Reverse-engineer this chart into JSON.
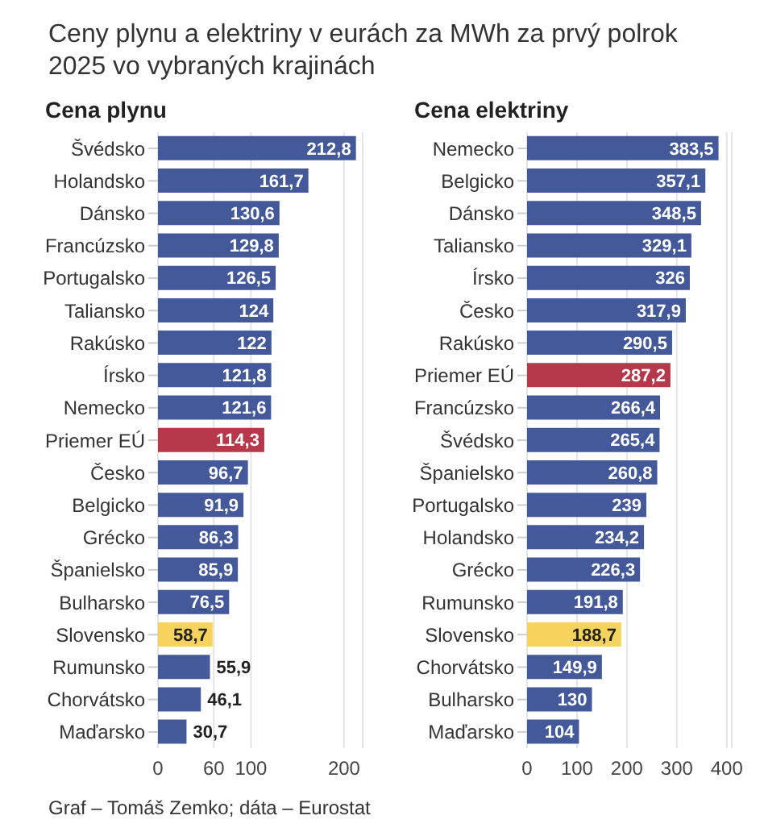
{
  "chart_data": [
    {
      "type": "bar",
      "orientation": "horizontal",
      "title": "Cena plynu",
      "annotations": [
        "Ceny plynu a elektriny v eurách za MWh za prvý polrok 2025 vo vybraných krajinách",
        "Graf – Tomáš Zemko; dáta – Eurostat"
      ],
      "categories": [
        "Švédsko",
        "Holandsko",
        "Dánsko",
        "Francúzsko",
        "Portugalsko",
        "Taliansko",
        "Rakúsko",
        "Írsko",
        "Nemecko",
        "Priemer EÚ",
        "Česko",
        "Belgicko",
        "Grécko",
        "Španielsko",
        "Bulharsko",
        "Slovensko",
        "Rumunsko",
        "Chorvátsko",
        "Maďarsko"
      ],
      "values": [
        212.8,
        161.7,
        130.6,
        129.8,
        126.5,
        124,
        122,
        121.8,
        121.6,
        114.3,
        96.7,
        91.9,
        86.3,
        85.9,
        76.5,
        58.7,
        55.9,
        46.1,
        30.7
      ],
      "value_labels": [
        "212,8",
        "161,7",
        "130,6",
        "129,8",
        "126,5",
        "124",
        "122",
        "121,8",
        "121,6",
        "114,3",
        "96,7",
        "91,9",
        "86,3",
        "85,9",
        "76,5",
        "58,7",
        "55,9",
        "46,1",
        "30,7"
      ],
      "colors": [
        "#44599a",
        "#44599a",
        "#44599a",
        "#44599a",
        "#44599a",
        "#44599a",
        "#44599a",
        "#44599a",
        "#44599a",
        "#b5394a",
        "#44599a",
        "#44599a",
        "#44599a",
        "#44599a",
        "#44599a",
        "#f5d35c",
        "#44599a",
        "#44599a",
        "#44599a"
      ],
      "xlim": [
        0,
        220
      ],
      "xticks": [
        0,
        60,
        100,
        200
      ],
      "grid": "x"
    },
    {
      "type": "bar",
      "orientation": "horizontal",
      "title": "Cena elektriny",
      "categories": [
        "Nemecko",
        "Belgicko",
        "Dánsko",
        "Taliansko",
        "Írsko",
        "Česko",
        "Rakúsko",
        "Priemer EÚ",
        "Francúzsko",
        "Švédsko",
        "Španielsko",
        "Portugalsko",
        "Holandsko",
        "Grécko",
        "Rumunsko",
        "Slovensko",
        "Chorvátsko",
        "Bulharsko",
        "Maďarsko"
      ],
      "values": [
        383.5,
        357.1,
        348.5,
        329.1,
        326,
        317.9,
        290.5,
        287.2,
        266.4,
        265.4,
        260.8,
        239,
        234.2,
        226.3,
        191.8,
        188.7,
        149.9,
        130,
        104
      ],
      "value_labels": [
        "383,5",
        "357,1",
        "348,5",
        "329,1",
        "326",
        "317,9",
        "290,5",
        "287,2",
        "266,4",
        "265,4",
        "260,8",
        "239",
        "234,2",
        "226,3",
        "191,8",
        "188,7",
        "149,9",
        "130",
        "104"
      ],
      "colors": [
        "#44599a",
        "#44599a",
        "#44599a",
        "#44599a",
        "#44599a",
        "#44599a",
        "#44599a",
        "#b5394a",
        "#44599a",
        "#44599a",
        "#44599a",
        "#44599a",
        "#44599a",
        "#44599a",
        "#44599a",
        "#f5d35c",
        "#44599a",
        "#44599a",
        "#44599a"
      ],
      "xlim": [
        0,
        410
      ],
      "xticks": [
        0,
        100,
        200,
        300,
        400
      ],
      "grid": "x"
    }
  ]
}
